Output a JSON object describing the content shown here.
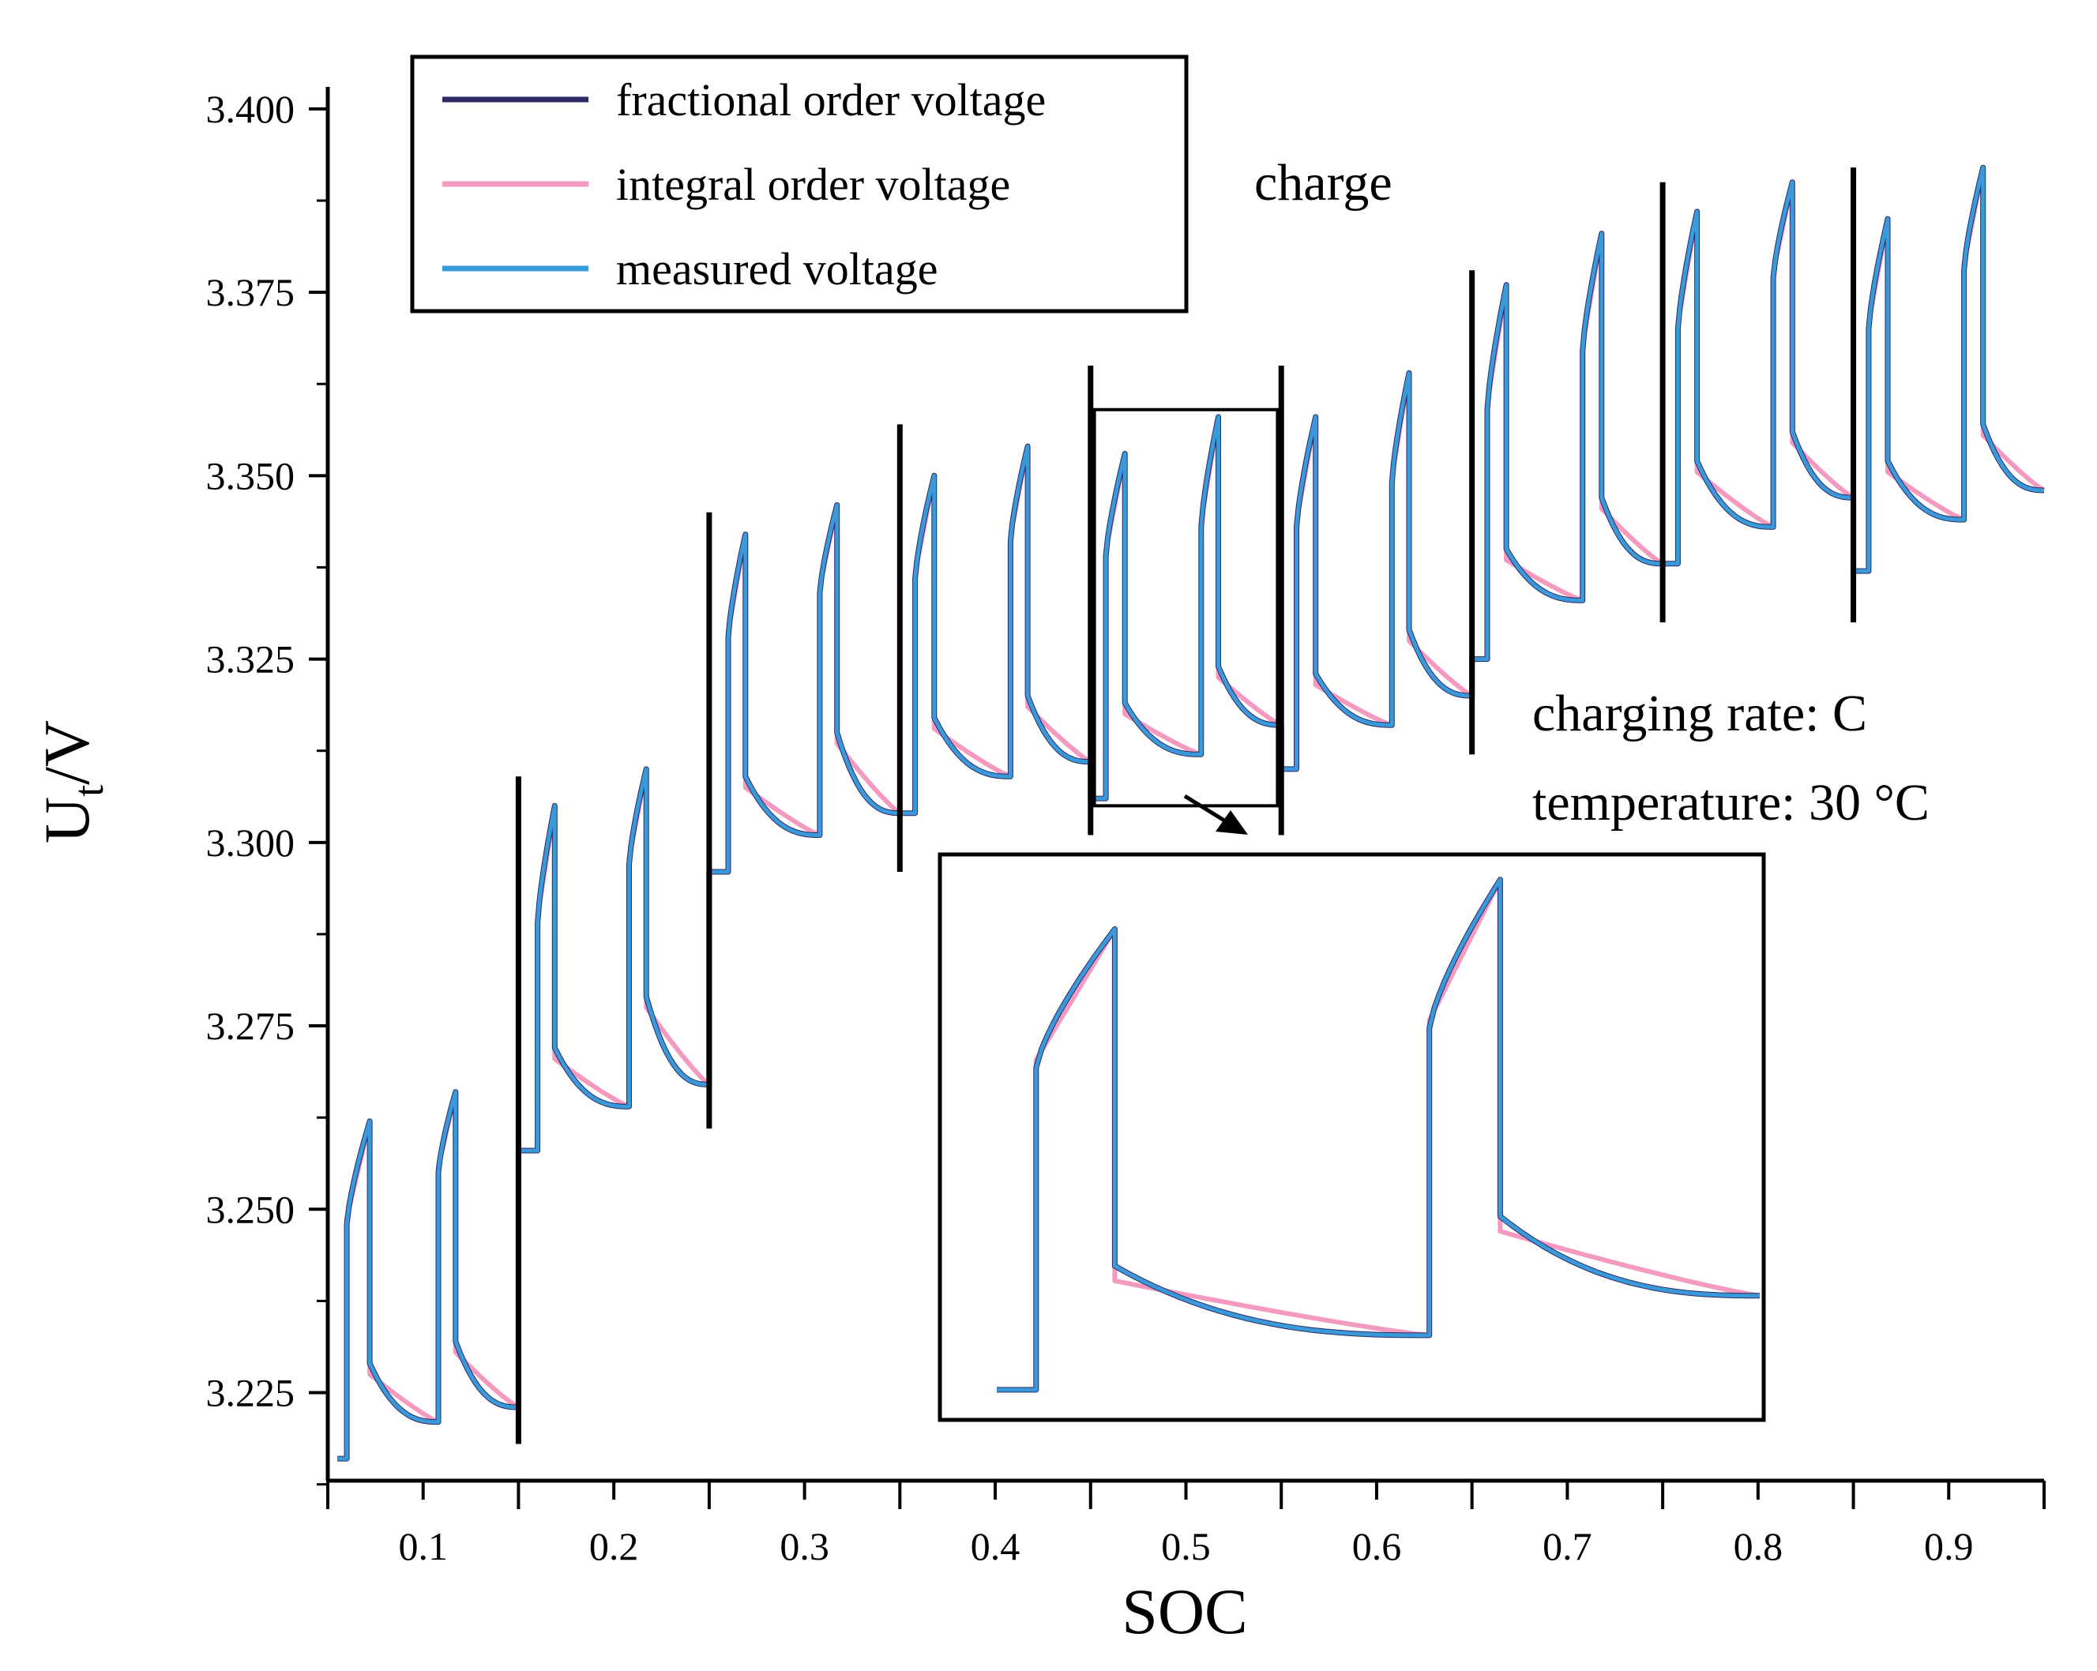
{
  "chart_data": {
    "type": "line",
    "title": "",
    "xlabel": "SOC",
    "ylabel_main": "U",
    "ylabel_sub": "t",
    "ylabel_tail": "/V",
    "xlim": [
      0.05,
      0.95
    ],
    "ylim": [
      3.213,
      3.403
    ],
    "x_ticks": [
      0.1,
      0.2,
      0.3,
      0.4,
      0.5,
      0.6,
      0.7,
      0.8,
      0.9
    ],
    "x_tick_labels": [
      "0.1",
      "0.2",
      "0.3",
      "0.4",
      "0.5",
      "0.6",
      "0.7",
      "0.8",
      "0.9"
    ],
    "y_ticks": [
      3.225,
      3.25,
      3.275,
      3.3,
      3.325,
      3.35,
      3.375,
      3.4
    ],
    "y_tick_labels": [
      "3.225",
      "3.250",
      "3.275",
      "3.300",
      "3.325",
      "3.350",
      "3.375",
      "3.400"
    ],
    "legend": {
      "placement": "top-left",
      "entries": [
        {
          "label": "fractional order voltage",
          "color": "#2e2a66"
        },
        {
          "label": "integral order voltage",
          "color": "#f49ac1"
        },
        {
          "label": "measured voltage",
          "color": "#3a9ad9"
        }
      ]
    },
    "annotations": {
      "charge": "charge",
      "rate": "charging rate: C",
      "temperature": "temperature: 30 °C"
    },
    "segment_boundaries": [
      {
        "x": 0.15,
        "y_range": [
          3.218,
          3.309
        ]
      },
      {
        "x": 0.25,
        "y_range": [
          3.261,
          3.345
        ]
      },
      {
        "x": 0.35,
        "y_range": [
          3.296,
          3.357
        ]
      },
      {
        "x": 0.45,
        "y_range": [
          3.301,
          3.365
        ]
      },
      {
        "x": 0.55,
        "y_range": [
          3.301,
          3.365
        ]
      },
      {
        "x": 0.65,
        "y_range": [
          3.312,
          3.378
        ]
      },
      {
        "x": 0.75,
        "y_range": [
          3.33,
          3.39
        ]
      },
      {
        "x": 0.85,
        "y_range": [
          3.33,
          3.392
        ]
      }
    ],
    "pulses": [
      {
        "t0": 0.055,
        "t1": 0.06,
        "t2": 0.072,
        "base": 3.216,
        "jump": 3.248,
        "peak": 3.262,
        "drop": 3.229,
        "end": 3.221,
        "relax_end": 0.108
      },
      {
        "t0": 0.108,
        "t1": 0.108,
        "t2": 0.117,
        "base": 3.221,
        "jump": 3.255,
        "peak": 3.266,
        "drop": 3.232,
        "end": 3.223,
        "relax_end": 0.15
      },
      {
        "t0": 0.15,
        "t1": 0.16,
        "t2": 0.169,
        "base": 3.258,
        "jump": 3.289,
        "peak": 3.305,
        "drop": 3.272,
        "end": 3.264,
        "relax_end": 0.208
      },
      {
        "t0": 0.208,
        "t1": 0.208,
        "t2": 0.217,
        "base": 3.264,
        "jump": 3.297,
        "peak": 3.31,
        "drop": 3.279,
        "end": 3.267,
        "relax_end": 0.25
      },
      {
        "t0": 0.25,
        "t1": 0.26,
        "t2": 0.269,
        "base": 3.296,
        "jump": 3.328,
        "peak": 3.342,
        "drop": 3.309,
        "end": 3.301,
        "relax_end": 0.308
      },
      {
        "t0": 0.308,
        "t1": 0.308,
        "t2": 0.317,
        "base": 3.301,
        "jump": 3.334,
        "peak": 3.346,
        "drop": 3.315,
        "end": 3.304,
        "relax_end": 0.35
      },
      {
        "t0": 0.35,
        "t1": 0.358,
        "t2": 0.368,
        "base": 3.304,
        "jump": 3.336,
        "peak": 3.35,
        "drop": 3.317,
        "end": 3.309,
        "relax_end": 0.408
      },
      {
        "t0": 0.408,
        "t1": 0.408,
        "t2": 0.417,
        "base": 3.309,
        "jump": 3.341,
        "peak": 3.354,
        "drop": 3.32,
        "end": 3.311,
        "relax_end": 0.45
      },
      {
        "t0": 0.45,
        "t1": 0.458,
        "t2": 0.468,
        "base": 3.306,
        "jump": 3.339,
        "peak": 3.353,
        "drop": 3.319,
        "end": 3.312,
        "relax_end": 0.508
      },
      {
        "t0": 0.508,
        "t1": 0.508,
        "t2": 0.517,
        "base": 3.312,
        "jump": 3.343,
        "peak": 3.358,
        "drop": 3.324,
        "end": 3.316,
        "relax_end": 0.55
      },
      {
        "t0": 0.55,
        "t1": 0.558,
        "t2": 0.568,
        "base": 3.31,
        "jump": 3.343,
        "peak": 3.358,
        "drop": 3.323,
        "end": 3.316,
        "relax_end": 0.608
      },
      {
        "t0": 0.608,
        "t1": 0.608,
        "t2": 0.617,
        "base": 3.316,
        "jump": 3.349,
        "peak": 3.364,
        "drop": 3.329,
        "end": 3.32,
        "relax_end": 0.65
      },
      {
        "t0": 0.65,
        "t1": 0.658,
        "t2": 0.668,
        "base": 3.325,
        "jump": 3.359,
        "peak": 3.376,
        "drop": 3.34,
        "end": 3.333,
        "relax_end": 0.708
      },
      {
        "t0": 0.708,
        "t1": 0.708,
        "t2": 0.718,
        "base": 3.333,
        "jump": 3.367,
        "peak": 3.383,
        "drop": 3.347,
        "end": 3.338,
        "relax_end": 0.75
      },
      {
        "t0": 0.75,
        "t1": 0.758,
        "t2": 0.768,
        "base": 3.338,
        "jump": 3.37,
        "peak": 3.386,
        "drop": 3.352,
        "end": 3.343,
        "relax_end": 0.808
      },
      {
        "t0": 0.808,
        "t1": 0.808,
        "t2": 0.818,
        "base": 3.343,
        "jump": 3.377,
        "peak": 3.39,
        "drop": 3.356,
        "end": 3.347,
        "relax_end": 0.85
      },
      {
        "t0": 0.85,
        "t1": 0.858,
        "t2": 0.868,
        "base": 3.337,
        "jump": 3.37,
        "peak": 3.385,
        "drop": 3.352,
        "end": 3.344,
        "relax_end": 0.908
      },
      {
        "t0": 0.908,
        "t1": 0.908,
        "t2": 0.918,
        "base": 3.344,
        "jump": 3.378,
        "peak": 3.392,
        "drop": 3.357,
        "end": 3.348,
        "relax_end": 0.95
      }
    ],
    "zoom_box": {
      "x_range": [
        0.452,
        0.548
      ],
      "y_range": [
        3.305,
        3.359
      ]
    }
  }
}
